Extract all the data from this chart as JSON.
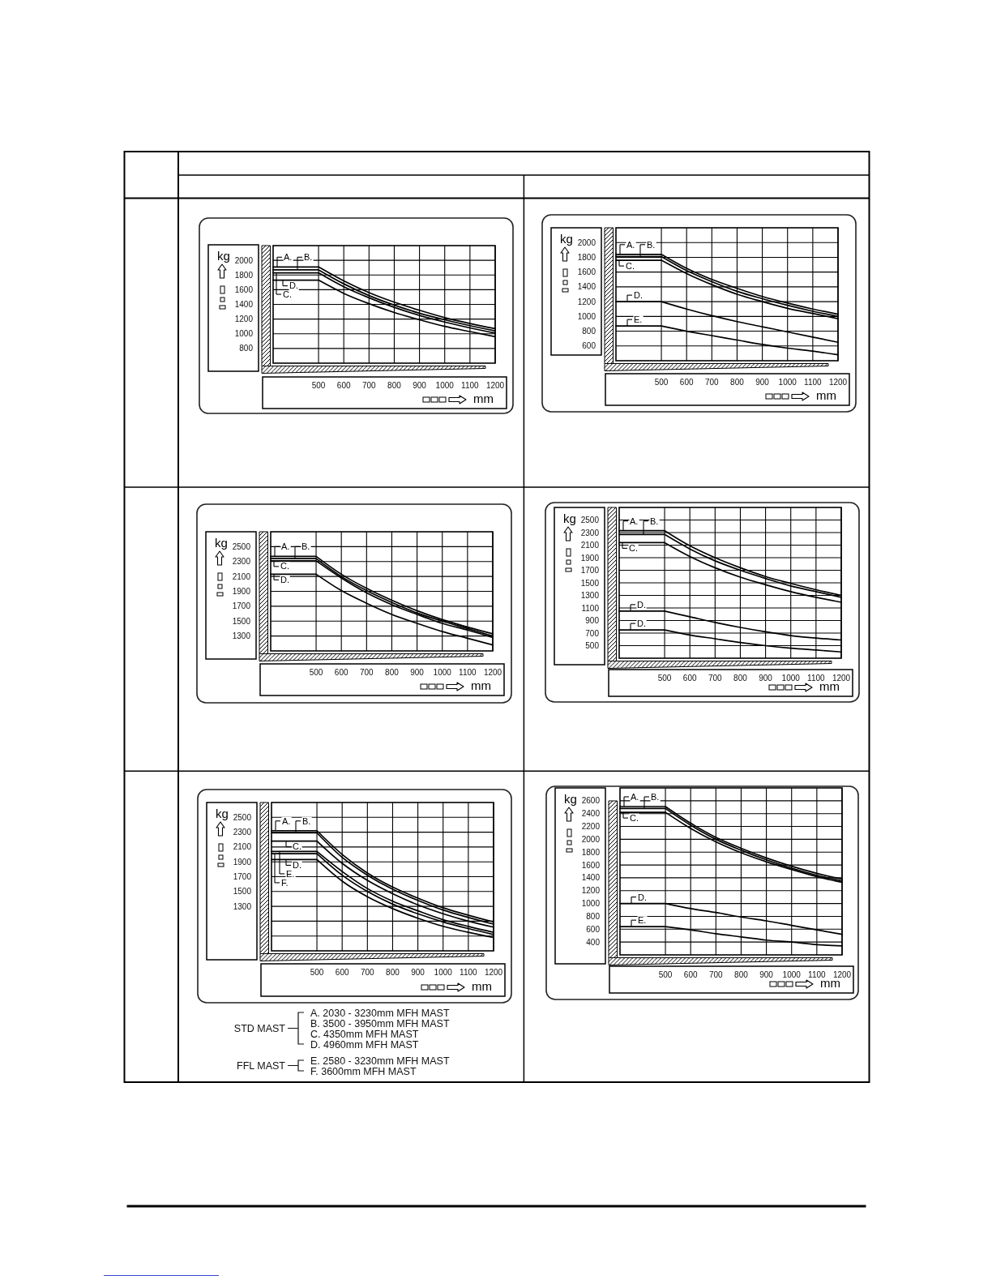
{
  "chart_data": [
    {
      "type": "line",
      "xlabel": "mm",
      "ylabel": "kg",
      "x": [
        320,
        500,
        600,
        700,
        800,
        900,
        1000,
        1100,
        1200
      ],
      "xlim": [
        320,
        1200
      ],
      "xticks": [
        500,
        600,
        700,
        800,
        900,
        1000,
        1100,
        1200
      ],
      "ylim": [
        600,
        2200
      ],
      "yticks": [
        800,
        1000,
        1200,
        1400,
        1600,
        1800,
        2000
      ],
      "grid": true,
      "legend": "top left",
      "series": [
        {
          "name": "A.",
          "color": "#000000",
          "values": [
            1910,
            1910,
            1720,
            1560,
            1430,
            1320,
            1220,
            1140,
            1070
          ]
        },
        {
          "name": "B.",
          "color": "#000000",
          "values": [
            1870,
            1870,
            1680,
            1520,
            1390,
            1280,
            1190,
            1110,
            1040
          ]
        },
        {
          "name": "C.",
          "color": "#000000",
          "values": [
            1830,
            1830,
            1640,
            1490,
            1360,
            1250,
            1160,
            1080,
            1010
          ]
        },
        {
          "name": "D.",
          "color": "#000000",
          "values": [
            1730,
            1730,
            1550,
            1410,
            1290,
            1190,
            1100,
            1030,
            960
          ]
        }
      ]
    },
    {
      "type": "line",
      "xlabel": "mm",
      "ylabel": "kg",
      "x": [
        320,
        500,
        600,
        700,
        800,
        900,
        1000,
        1100,
        1200
      ],
      "xlim": [
        320,
        1200
      ],
      "xticks": [
        500,
        600,
        700,
        800,
        900,
        1000,
        1100,
        1200
      ],
      "ylim": [
        400,
        2200
      ],
      "yticks": [
        600,
        800,
        1000,
        1200,
        1400,
        1600,
        1800,
        2000
      ],
      "grid": true,
      "legend": "left",
      "series": [
        {
          "name": "A.",
          "color": "#000000",
          "values": [
            1840,
            1840,
            1650,
            1500,
            1380,
            1270,
            1180,
            1100,
            1030
          ]
        },
        {
          "name": "B.",
          "color": "#000000",
          "values": [
            1810,
            1810,
            1620,
            1470,
            1340,
            1240,
            1150,
            1070,
            1000
          ]
        },
        {
          "name": "C.",
          "color": "#000000",
          "values": [
            1760,
            1760,
            1580,
            1430,
            1300,
            1200,
            1110,
            1040,
            970
          ]
        },
        {
          "name": "D.",
          "color": "#000000",
          "values": [
            1200,
            1200,
            1100,
            1010,
            930,
            860,
            790,
            720,
            650
          ]
        },
        {
          "name": "E.",
          "color": "#000000",
          "values": [
            870,
            870,
            800,
            740,
            680,
            620,
            570,
            530,
            480
          ]
        }
      ]
    },
    {
      "type": "line",
      "xlabel": "mm",
      "ylabel": "kg",
      "x": [
        320,
        500,
        600,
        700,
        800,
        900,
        1000,
        1100,
        1200
      ],
      "xlim": [
        320,
        1200
      ],
      "xticks": [
        500,
        600,
        700,
        800,
        900,
        1000,
        1100,
        1200
      ],
      "ylim": [
        1100,
        2700
      ],
      "yticks": [
        1300,
        1500,
        1700,
        1900,
        2100,
        2300,
        2500
      ],
      "grid": true,
      "legend": "top left",
      "series": [
        {
          "name": "A.",
          "color": "#000000",
          "values": [
            2370,
            2370,
            2130,
            1940,
            1780,
            1640,
            1520,
            1420,
            1330
          ]
        },
        {
          "name": "B.",
          "color": "#000000",
          "values": [
            2340,
            2340,
            2100,
            1910,
            1750,
            1610,
            1500,
            1400,
            1300
          ]
        },
        {
          "name": "C.",
          "color": "#000000",
          "values": [
            2310,
            2310,
            2080,
            1880,
            1720,
            1590,
            1470,
            1380,
            1280
          ]
        },
        {
          "name": "D.",
          "color": "#000000",
          "values": [
            2130,
            2130,
            1910,
            1740,
            1590,
            1470,
            1360,
            1270,
            1180
          ]
        }
      ]
    },
    {
      "type": "line",
      "xlabel": "mm",
      "ylabel": "kg",
      "x": [
        320,
        500,
        600,
        700,
        800,
        900,
        1000,
        1100,
        1200
      ],
      "xlim": [
        320,
        1200
      ],
      "xticks": [
        500,
        600,
        700,
        800,
        900,
        1000,
        1100,
        1200
      ],
      "ylim": [
        300,
        2700
      ],
      "yticks": [
        500,
        700,
        900,
        1100,
        1300,
        1500,
        1700,
        1900,
        2100,
        2300,
        2500
      ],
      "grid": true,
      "legend": "left",
      "series": [
        {
          "name": "A.",
          "color": "#000000",
          "values": [
            2330,
            2330,
            2090,
            1900,
            1740,
            1600,
            1490,
            1390,
            1300
          ]
        },
        {
          "name": "B.",
          "color": "#000000",
          "values": [
            2270,
            2270,
            2040,
            1850,
            1700,
            1570,
            1450,
            1360,
            1270
          ]
        },
        {
          "name": "C.",
          "color": "#000000",
          "values": [
            2140,
            2140,
            1920,
            1740,
            1590,
            1470,
            1360,
            1270,
            1190
          ]
        },
        {
          "name": "D.",
          "color": "#000000",
          "values": [
            1050,
            1050,
            960,
            870,
            790,
            720,
            660,
            620,
            590
          ]
        },
        {
          "name": "D.",
          "color": "#000000",
          "values": [
            750,
            750,
            670,
            610,
            550,
            500,
            460,
            430,
            400
          ]
        }
      ]
    },
    {
      "type": "line",
      "xlabel": "mm",
      "ylabel": "kg",
      "x": [
        320,
        500,
        600,
        700,
        800,
        900,
        1000,
        1100,
        1200
      ],
      "xlim": [
        320,
        1200
      ],
      "xticks": [
        500,
        600,
        700,
        800,
        900,
        1000,
        1100,
        1200
      ],
      "ylim": [
        700,
        2700
      ],
      "yticks": [
        {
          "value": 900,
          "label": null
        },
        {
          "value": 1100,
          "label": null
        },
        1300,
        1500,
        1700,
        1900,
        2100,
        2300,
        2500
      ],
      "grid": true,
      "legend": "top left",
      "series": [
        {
          "name": "A.",
          "color": "#000000",
          "values": [
            2320,
            2320,
            2000,
            1750,
            1560,
            1410,
            1280,
            1180,
            1090
          ]
        },
        {
          "name": "B.",
          "color": "#000000",
          "values": [
            2290,
            2290,
            1960,
            1720,
            1530,
            1380,
            1250,
            1150,
            1060
          ]
        },
        {
          "name": "C.",
          "color": "#000000",
          "values": [
            2180,
            2180,
            1880,
            1650,
            1470,
            1320,
            1200,
            1100,
            1020
          ]
        },
        {
          "name": "D.",
          "color": "#000000",
          "values": [
            1930,
            1930,
            1640,
            1430,
            1270,
            1140,
            1030,
            950,
            880
          ]
        },
        {
          "name": "E.",
          "color": "#000000",
          "values": [
            2040,
            2040,
            1770,
            1540,
            1370,
            1240,
            1120,
            1030,
            950
          ]
        },
        {
          "name": "F.",
          "color": "#000000",
          "values": [
            2010,
            2010,
            1720,
            1500,
            1330,
            1200,
            1090,
            1000,
            920
          ]
        }
      ],
      "annotations": [
        "STD MAST",
        "A. 2030 - 3230mm MFH MAST",
        "B. 3500 - 3950mm MFH MAST",
        "C. 4350mm MFH MAST",
        "D. 4960mm MFH MAST",
        "FFL MAST",
        "E. 2580 - 3230mm MFH MAST",
        "F. 3600mm MFH MAST"
      ]
    },
    {
      "type": "line",
      "xlabel": "mm",
      "ylabel": "kg",
      "x": [
        320,
        500,
        600,
        700,
        800,
        900,
        1000,
        1100,
        1200
      ],
      "xlim": [
        320,
        1200
      ],
      "xticks": [
        500,
        600,
        700,
        800,
        900,
        1000,
        1100,
        1200
      ],
      "ylim": [
        200,
        2800
      ],
      "yticks": [
        400,
        600,
        800,
        1000,
        1200,
        1400,
        1600,
        1800,
        2000,
        2200,
        2400,
        2600
      ],
      "grid": true,
      "legend": "left",
      "series": [
        {
          "name": "A.",
          "color": "#000000",
          "values": [
            2510,
            2510,
            2250,
            2030,
            1860,
            1710,
            1580,
            1470,
            1380
          ]
        },
        {
          "name": "B.",
          "color": "#000000",
          "values": [
            2480,
            2480,
            2220,
            2000,
            1830,
            1680,
            1550,
            1440,
            1350
          ]
        },
        {
          "name": "C.",
          "color": "#000000",
          "values": [
            2420,
            2420,
            2170,
            1960,
            1790,
            1650,
            1530,
            1420,
            1330
          ]
        },
        {
          "name": "D.",
          "color": "#000000",
          "values": [
            1000,
            1000,
            920,
            860,
            790,
            730,
            660,
            590,
            520
          ]
        },
        {
          "name": "E.",
          "color": "#000000",
          "values": [
            640,
            640,
            590,
            530,
            480,
            430,
            400,
            360,
            340
          ]
        }
      ]
    }
  ]
}
